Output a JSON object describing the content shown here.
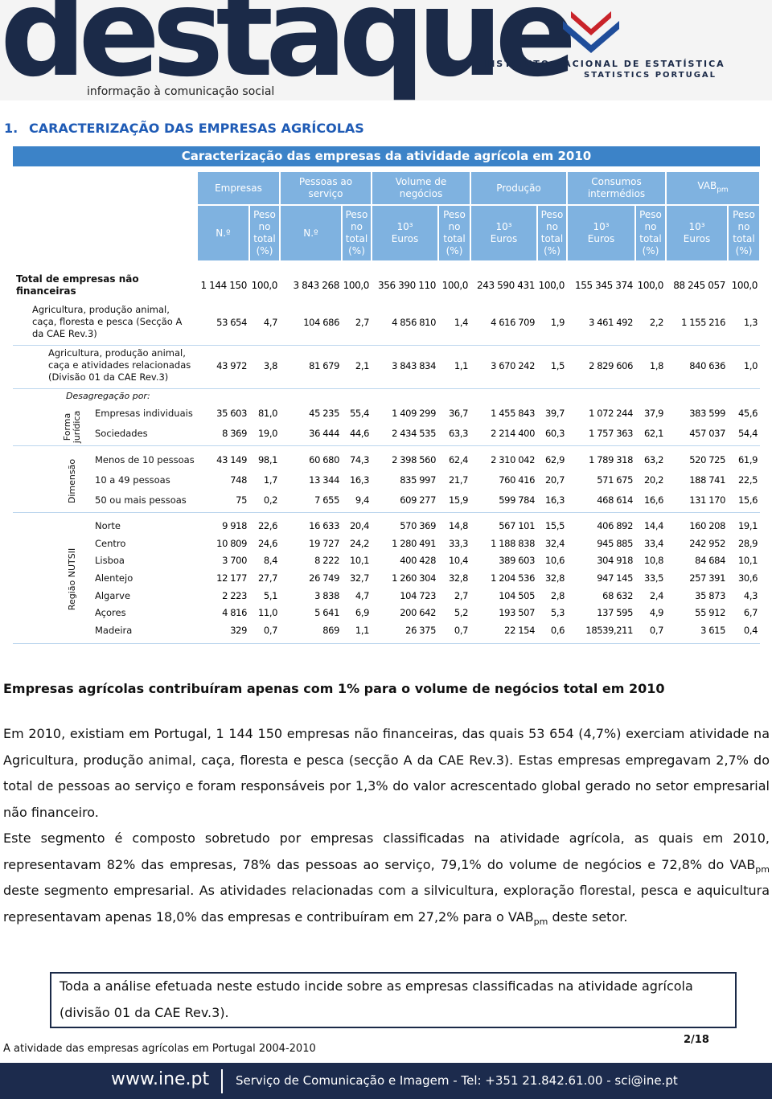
{
  "header": {
    "logo": "destaque",
    "tagline": "informação à comunicação social",
    "institute": "INSTITUTO NACIONAL DE ESTATÍSTICA",
    "institute_en": "STATISTICS PORTUGAL"
  },
  "section": {
    "number": "1.",
    "title": "CARACTERIZAÇÃO DAS EMPRESAS AGRÍCOLAS"
  },
  "table": {
    "title": "Caracterização das empresas da atividade agrícola em 2010",
    "groups": [
      "Empresas",
      "Pessoas ao serviço",
      "Volume de negócios",
      "Produção",
      "Consumos intermédios",
      [
        "VAB",
        "pm"
      ]
    ],
    "subheaders": [
      "N.º",
      "Peso no total (%)",
      "N.º",
      "Peso no total (%)",
      "10³ Euros",
      "Peso no total (%)",
      "10³ Euros",
      "Peso no total (%)",
      "10³ Euros",
      "Peso no total (%)",
      "10³ Euros",
      "Peso no total (%)"
    ],
    "breakdown_label": "Desagregação por:",
    "side_labels": [
      "Forma jurídica",
      "Dimensão",
      "Região NUTSII"
    ],
    "rows": [
      {
        "label": "Total de empresas não financeiras",
        "values": [
          "1 144 150",
          "100,0",
          "3 843 268",
          "100,0",
          "356 390 110",
          "100,0",
          "243 590 431",
          "100,0",
          "155 345 374",
          "100,0",
          "88 245 057",
          "100,0"
        ]
      },
      {
        "label": "Agricultura, produção animal, caça, floresta e pesca (Secção A da CAE Rev.3)",
        "values": [
          "53 654",
          "4,7",
          "104 686",
          "2,7",
          "4 856 810",
          "1,4",
          "4 616 709",
          "1,9",
          "3 461 492",
          "2,2",
          "1 155 216",
          "1,3"
        ]
      },
      {
        "label": "Agricultura, produção animal, caça e atividades relacionadas (Divisão 01 da CAE Rev.3)",
        "values": [
          "43 972",
          "3,8",
          "81 679",
          "2,1",
          "3 843 834",
          "1,1",
          "3 670 242",
          "1,5",
          "2 829 606",
          "1,8",
          "840 636",
          "1,0"
        ]
      },
      {
        "label": "Empresas individuais",
        "values": [
          "35 603",
          "81,0",
          "45 235",
          "55,4",
          "1 409 299",
          "36,7",
          "1 455 843",
          "39,7",
          "1 072 244",
          "37,9",
          "383 599",
          "45,6"
        ]
      },
      {
        "label": "Sociedades",
        "values": [
          "8 369",
          "19,0",
          "36 444",
          "44,6",
          "2 434 535",
          "63,3",
          "2 214 400",
          "60,3",
          "1 757 363",
          "62,1",
          "457 037",
          "54,4"
        ]
      },
      {
        "label": "Menos de 10 pessoas",
        "values": [
          "43 149",
          "98,1",
          "60 680",
          "74,3",
          "2 398 560",
          "62,4",
          "2 310 042",
          "62,9",
          "1 789 318",
          "63,2",
          "520 725",
          "61,9"
        ]
      },
      {
        "label": "10 a 49 pessoas",
        "values": [
          "748",
          "1,7",
          "13 344",
          "16,3",
          "835 997",
          "21,7",
          "760 416",
          "20,7",
          "571 675",
          "20,2",
          "188 741",
          "22,5"
        ]
      },
      {
        "label": "50 ou mais pessoas",
        "values": [
          "75",
          "0,2",
          "7 655",
          "9,4",
          "609 277",
          "15,9",
          "599 784",
          "16,3",
          "468 614",
          "16,6",
          "131 170",
          "15,6"
        ]
      },
      {
        "label": "Norte",
        "values": [
          "9 918",
          "22,6",
          "16 633",
          "20,4",
          "570 369",
          "14,8",
          "567 101",
          "15,5",
          "406 892",
          "14,4",
          "160 208",
          "19,1"
        ]
      },
      {
        "label": "Centro",
        "values": [
          "10 809",
          "24,6",
          "19 727",
          "24,2",
          "1 280 491",
          "33,3",
          "1 188 838",
          "32,4",
          "945 885",
          "33,4",
          "242 952",
          "28,9"
        ]
      },
      {
        "label": "Lisboa",
        "values": [
          "3 700",
          "8,4",
          "8 222",
          "10,1",
          "400 428",
          "10,4",
          "389 603",
          "10,6",
          "304 918",
          "10,8",
          "84 684",
          "10,1"
        ]
      },
      {
        "label": "Alentejo",
        "values": [
          "12 177",
          "27,7",
          "26 749",
          "32,7",
          "1 260 304",
          "32,8",
          "1 204 536",
          "32,8",
          "947 145",
          "33,5",
          "257 391",
          "30,6"
        ]
      },
      {
        "label": "Algarve",
        "values": [
          "2 223",
          "5,1",
          "3 838",
          "4,7",
          "104 723",
          "2,7",
          "104 505",
          "2,8",
          "68 632",
          "2,4",
          "35 873",
          "4,3"
        ]
      },
      {
        "label": "Açores",
        "values": [
          "4 816",
          "11,0",
          "5 641",
          "6,9",
          "200 642",
          "5,2",
          "193 507",
          "5,3",
          "137 595",
          "4,9",
          "55 912",
          "6,7"
        ]
      },
      {
        "label": "Madeira",
        "values": [
          "329",
          "0,7",
          "869",
          "1,1",
          "26 375",
          "0,7",
          "22 154",
          "0,6",
          "18539,211",
          "0,7",
          "3 615",
          "0,4"
        ]
      }
    ]
  },
  "body": {
    "heading": "Empresas agrícolas contribuíram apenas com 1% para o volume de negócios total em 2010",
    "paragraphs": [
      [
        "Em 2010, existiam em Portugal, 1 144 150 empresas não financeiras, das quais 53 654 (4,7%) exerciam atividade na Agricultura, produção animal, caça, floresta e pesca (secção A da CAE Rev.3). Estas empresas empregavam 2,7% do total de pessoas ao serviço e foram responsáveis por 1,3% do valor acrescentado global gerado no setor empresarial não financeiro."
      ],
      [
        "Este segmento é composto sobretudo por empresas classificadas na atividade agrícola, as quais em 2010, representavam 82% das empresas, 78% das pessoas ao serviço, 79,1% do volume de negócios e 72,8% do VAB",
        "pm",
        " deste segmento empresarial. As atividades relacionadas com a silvicultura, exploração florestal, pesca e aquicultura representavam apenas 18,0% das empresas e contribuíram em 27,2% para o VAB",
        "pm",
        " deste setor."
      ]
    ],
    "note": "Toda a análise efetuada neste estudo incide sobre as empresas classificadas na atividade agrícola (divisão 01 da CAE Rev.3)."
  },
  "footer": {
    "publication": "A atividade das empresas agrícolas em Portugal 2004-2010",
    "page": "2/18",
    "site": "www.ine.pt",
    "contact": "Serviço de Comunicação e Imagem - Tel: +351 21.842.61.00 - sci@ine.pt"
  }
}
